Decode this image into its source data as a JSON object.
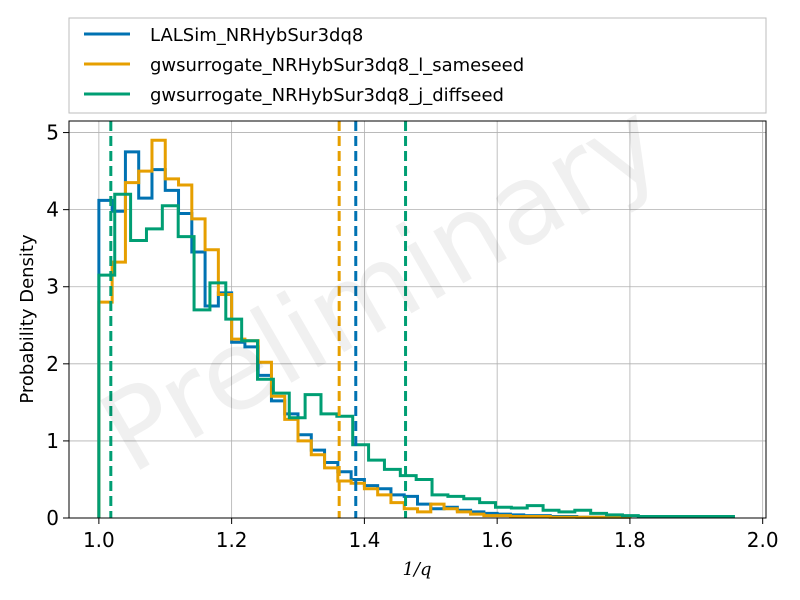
{
  "chart_data": {
    "type": "histogram",
    "title": "",
    "xlabel": "1/q",
    "ylabel": "Probability Density",
    "xlim": [
      0.955,
      2.005
    ],
    "ylim": [
      0,
      5.15
    ],
    "xticks": [
      "1.0",
      "1.2",
      "1.4",
      "1.6",
      "1.8",
      "2.0"
    ],
    "yticks": [
      "0",
      "1",
      "2",
      "3",
      "4",
      "5"
    ],
    "grid": true,
    "legend_position": "top (above plot)",
    "watermark": "Preliminary",
    "series": [
      {
        "name": "LALSim_NRHybSur3dq8",
        "color": "#0072b2",
        "bin_edges": [
          1.0,
          1.02,
          1.04,
          1.06,
          1.08,
          1.1,
          1.12,
          1.14,
          1.16,
          1.18,
          1.2,
          1.22,
          1.24,
          1.26,
          1.28,
          1.3,
          1.32,
          1.34,
          1.36,
          1.38,
          1.4,
          1.42,
          1.44,
          1.46,
          1.48,
          1.5,
          1.52,
          1.54,
          1.56,
          1.58,
          1.6,
          1.62,
          1.64,
          1.66,
          1.68,
          1.7,
          1.72,
          1.74,
          1.76,
          1.78,
          1.8
        ],
        "density": [
          4.12,
          3.98,
          4.75,
          4.15,
          4.52,
          4.25,
          3.95,
          3.45,
          2.75,
          2.92,
          2.28,
          2.22,
          1.85,
          1.52,
          1.35,
          1.08,
          0.88,
          0.72,
          0.6,
          0.5,
          0.42,
          0.38,
          0.3,
          0.28,
          0.18,
          0.12,
          0.14,
          0.1,
          0.08,
          0.06,
          0.05,
          0.04,
          0.03,
          0.03,
          0.02,
          0.02,
          0.01,
          0.01,
          0.01,
          0.01
        ],
        "median_line": 1.387
      },
      {
        "name": "gwsurrogate_NRHybSur3dq8_l_sameseed",
        "color": "#e69f00",
        "bin_edges": [
          1.0,
          1.02,
          1.04,
          1.06,
          1.08,
          1.1,
          1.12,
          1.14,
          1.16,
          1.18,
          1.2,
          1.22,
          1.24,
          1.26,
          1.28,
          1.3,
          1.32,
          1.34,
          1.36,
          1.38,
          1.4,
          1.42,
          1.44,
          1.46,
          1.48,
          1.5,
          1.52,
          1.54,
          1.56,
          1.58,
          1.6,
          1.62,
          1.64,
          1.66,
          1.68,
          1.7,
          1.72,
          1.74,
          1.76,
          1.78,
          1.8
        ],
        "density": [
          2.8,
          3.32,
          4.35,
          4.5,
          4.9,
          4.4,
          4.32,
          3.88,
          3.48,
          2.9,
          2.32,
          2.3,
          2.02,
          1.58,
          1.28,
          1.0,
          0.82,
          0.65,
          0.48,
          0.45,
          0.38,
          0.3,
          0.2,
          0.12,
          0.08,
          0.18,
          0.12,
          0.08,
          0.05,
          0.03,
          0.03,
          0.02,
          0.02,
          0.02,
          0.01,
          0.01,
          0.01,
          0.01,
          0.01,
          0.01
        ],
        "median_line": 1.362
      },
      {
        "name": "gwsurrogate_NRHybSur3dq8_j_diffseed",
        "color": "#009e73",
        "bin_edges": [
          1.0,
          1.0239,
          1.0478,
          1.0717,
          1.0956,
          1.1195,
          1.1434,
          1.1673,
          1.1912,
          1.2151,
          1.239,
          1.2629,
          1.2868,
          1.3107,
          1.3346,
          1.3585,
          1.3824,
          1.4063,
          1.4302,
          1.4541,
          1.478,
          1.5019,
          1.5258,
          1.5497,
          1.5736,
          1.5975,
          1.6214,
          1.6453,
          1.6692,
          1.6931,
          1.717,
          1.7409,
          1.7648,
          1.7887,
          1.8126,
          1.8365,
          1.8604,
          1.8843,
          1.9082,
          1.9321,
          1.956
        ],
        "density": [
          3.15,
          4.2,
          3.6,
          3.75,
          4.05,
          3.65,
          2.7,
          3.05,
          2.58,
          2.3,
          1.8,
          1.62,
          1.3,
          1.6,
          1.35,
          1.32,
          0.95,
          0.75,
          0.63,
          0.55,
          0.5,
          0.3,
          0.28,
          0.25,
          0.2,
          0.14,
          0.13,
          0.16,
          0.1,
          0.08,
          0.1,
          0.06,
          0.04,
          0.03,
          0.02,
          0.02,
          0.02,
          0.02,
          0.02,
          0.02
        ],
        "median_line": 1.462,
        "extra_line": 1.018
      }
    ]
  }
}
